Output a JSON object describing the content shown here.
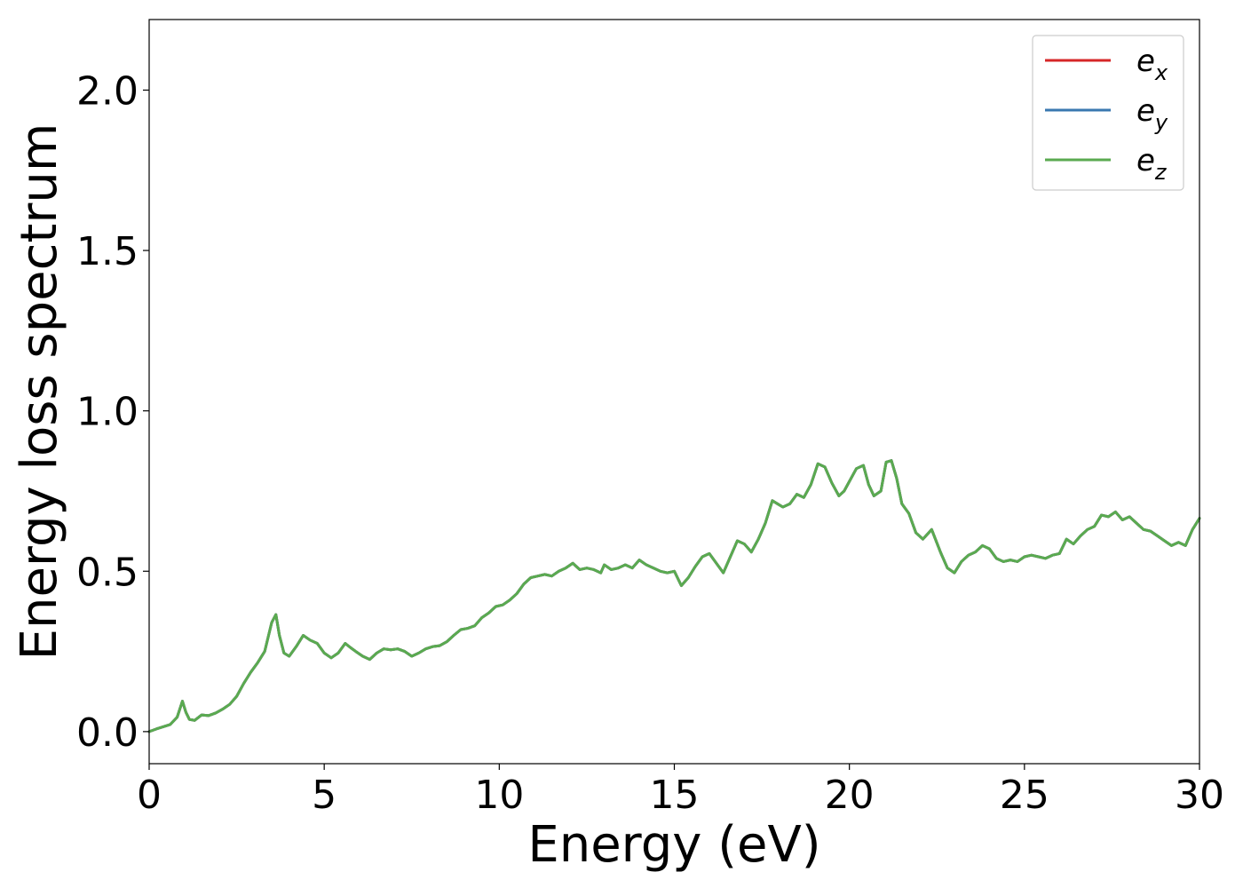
{
  "chart_data": {
    "type": "line",
    "xlabel": "Energy (eV)",
    "ylabel": "Energy loss spectrum",
    "xlim": [
      0,
      30
    ],
    "ylim": [
      -0.1,
      2.22
    ],
    "xticks": [
      0,
      5,
      10,
      15,
      20,
      25,
      30
    ],
    "xtick_labels": [
      "0",
      "5",
      "10",
      "15",
      "20",
      "25",
      "30"
    ],
    "yticks": [
      0.0,
      0.5,
      1.0,
      1.5,
      2.0
    ],
    "ytick_labels": [
      "0.0",
      "0.5",
      "1.0",
      "1.5",
      "2.0"
    ],
    "grid": false,
    "legend_position": "top-right",
    "x": [
      0,
      0.2,
      0.4,
      0.6,
      0.8,
      0.95,
      1.05,
      1.15,
      1.3,
      1.5,
      1.7,
      1.9,
      2.1,
      2.3,
      2.5,
      2.7,
      2.9,
      3.1,
      3.3,
      3.5,
      3.62,
      3.72,
      3.85,
      4.0,
      4.2,
      4.4,
      4.6,
      4.8,
      5.0,
      5.2,
      5.4,
      5.6,
      5.75,
      5.9,
      6.1,
      6.3,
      6.5,
      6.7,
      6.9,
      7.1,
      7.3,
      7.5,
      7.7,
      7.9,
      8.1,
      8.3,
      8.5,
      8.7,
      8.9,
      9.1,
      9.3,
      9.5,
      9.7,
      9.9,
      10.1,
      10.3,
      10.5,
      10.7,
      10.9,
      11.1,
      11.3,
      11.5,
      11.7,
      11.9,
      12.1,
      12.3,
      12.5,
      12.7,
      12.9,
      13.0,
      13.2,
      13.4,
      13.6,
      13.8,
      14.0,
      14.2,
      14.4,
      14.6,
      14.8,
      15.0,
      15.2,
      15.4,
      15.6,
      15.8,
      16.0,
      16.2,
      16.4,
      16.6,
      16.8,
      17.0,
      17.2,
      17.4,
      17.6,
      17.8,
      17.95,
      18.1,
      18.3,
      18.5,
      18.7,
      18.9,
      19.1,
      19.3,
      19.5,
      19.7,
      19.85,
      20.0,
      20.2,
      20.4,
      20.55,
      20.7,
      20.9,
      21.05,
      21.2,
      21.35,
      21.5,
      21.7,
      21.9,
      22.1,
      22.35,
      22.6,
      22.8,
      23.0,
      23.2,
      23.4,
      23.6,
      23.8,
      24.0,
      24.2,
      24.4,
      24.6,
      24.8,
      25.0,
      25.2,
      25.4,
      25.6,
      25.8,
      26.0,
      26.2,
      26.4,
      26.6,
      26.8,
      27.0,
      27.2,
      27.4,
      27.6,
      27.8,
      28.0,
      28.2,
      28.4,
      28.6,
      28.8,
      29.0,
      29.2,
      29.4,
      29.6,
      29.8,
      30.0
    ],
    "series": [
      {
        "name": "e_x",
        "color": "#d62728",
        "values": [
          0.0,
          0.008,
          0.015,
          0.022,
          0.045,
          0.095,
          0.06,
          0.038,
          0.035,
          0.052,
          0.05,
          0.058,
          0.07,
          0.085,
          0.11,
          0.15,
          0.185,
          0.215,
          0.25,
          0.34,
          0.365,
          0.3,
          0.245,
          0.235,
          0.265,
          0.3,
          0.285,
          0.275,
          0.245,
          0.23,
          0.245,
          0.275,
          0.262,
          0.25,
          0.235,
          0.225,
          0.245,
          0.258,
          0.255,
          0.258,
          0.25,
          0.235,
          0.245,
          0.258,
          0.265,
          0.268,
          0.28,
          0.3,
          0.318,
          0.322,
          0.33,
          0.355,
          0.37,
          0.39,
          0.395,
          0.41,
          0.43,
          0.46,
          0.48,
          0.485,
          0.49,
          0.485,
          0.5,
          0.51,
          0.525,
          0.505,
          0.51,
          0.505,
          0.495,
          0.52,
          0.505,
          0.51,
          0.52,
          0.51,
          0.535,
          0.52,
          0.51,
          0.5,
          0.495,
          0.5,
          0.455,
          0.48,
          0.515,
          0.545,
          0.555,
          0.525,
          0.495,
          0.545,
          0.595,
          0.585,
          0.56,
          0.6,
          0.65,
          0.72,
          0.71,
          0.7,
          0.71,
          0.74,
          0.73,
          0.77,
          0.835,
          0.825,
          0.775,
          0.735,
          0.75,
          0.78,
          0.82,
          0.83,
          0.77,
          0.735,
          0.75,
          0.84,
          0.845,
          0.79,
          0.71,
          0.68,
          0.62,
          0.6,
          0.63,
          0.56,
          0.51,
          0.495,
          0.53,
          0.55,
          0.56,
          0.58,
          0.57,
          0.54,
          0.53,
          0.535,
          0.53,
          0.545,
          0.55,
          0.545,
          0.54,
          0.55,
          0.555,
          0.6,
          0.585,
          0.61,
          0.63,
          0.64,
          0.675,
          0.67,
          0.685,
          0.66,
          0.67,
          0.65,
          0.63,
          0.625,
          0.61,
          0.595,
          0.58,
          0.59,
          0.58,
          0.63,
          0.665
        ]
      },
      {
        "name": "e_y",
        "color": "#3a78b0",
        "values": [
          0.0,
          0.008,
          0.015,
          0.022,
          0.045,
          0.095,
          0.06,
          0.038,
          0.035,
          0.052,
          0.05,
          0.058,
          0.07,
          0.085,
          0.11,
          0.15,
          0.185,
          0.215,
          0.25,
          0.34,
          0.365,
          0.3,
          0.245,
          0.235,
          0.265,
          0.3,
          0.285,
          0.275,
          0.245,
          0.23,
          0.245,
          0.275,
          0.262,
          0.25,
          0.235,
          0.225,
          0.245,
          0.258,
          0.255,
          0.258,
          0.25,
          0.235,
          0.245,
          0.258,
          0.265,
          0.268,
          0.28,
          0.3,
          0.318,
          0.322,
          0.33,
          0.355,
          0.37,
          0.39,
          0.395,
          0.41,
          0.43,
          0.46,
          0.48,
          0.485,
          0.49,
          0.485,
          0.5,
          0.51,
          0.525,
          0.505,
          0.51,
          0.505,
          0.495,
          0.52,
          0.505,
          0.51,
          0.52,
          0.51,
          0.535,
          0.52,
          0.51,
          0.5,
          0.495,
          0.5,
          0.455,
          0.48,
          0.515,
          0.545,
          0.555,
          0.525,
          0.495,
          0.545,
          0.595,
          0.585,
          0.56,
          0.6,
          0.65,
          0.72,
          0.71,
          0.7,
          0.71,
          0.74,
          0.73,
          0.77,
          0.835,
          0.825,
          0.775,
          0.735,
          0.75,
          0.78,
          0.82,
          0.83,
          0.77,
          0.735,
          0.75,
          0.84,
          0.845,
          0.79,
          0.71,
          0.68,
          0.62,
          0.6,
          0.63,
          0.56,
          0.51,
          0.495,
          0.53,
          0.55,
          0.56,
          0.58,
          0.57,
          0.54,
          0.53,
          0.535,
          0.53,
          0.545,
          0.55,
          0.545,
          0.54,
          0.55,
          0.555,
          0.6,
          0.585,
          0.61,
          0.63,
          0.64,
          0.675,
          0.67,
          0.685,
          0.66,
          0.67,
          0.65,
          0.63,
          0.625,
          0.61,
          0.595,
          0.58,
          0.59,
          0.58,
          0.63,
          0.665
        ]
      },
      {
        "name": "e_z",
        "color": "#5aaa50",
        "values": [
          0.0,
          0.008,
          0.015,
          0.022,
          0.045,
          0.095,
          0.06,
          0.038,
          0.035,
          0.052,
          0.05,
          0.058,
          0.07,
          0.085,
          0.11,
          0.15,
          0.185,
          0.215,
          0.25,
          0.34,
          0.365,
          0.3,
          0.245,
          0.235,
          0.265,
          0.3,
          0.285,
          0.275,
          0.245,
          0.23,
          0.245,
          0.275,
          0.262,
          0.25,
          0.235,
          0.225,
          0.245,
          0.258,
          0.255,
          0.258,
          0.25,
          0.235,
          0.245,
          0.258,
          0.265,
          0.268,
          0.28,
          0.3,
          0.318,
          0.322,
          0.33,
          0.355,
          0.37,
          0.39,
          0.395,
          0.41,
          0.43,
          0.46,
          0.48,
          0.485,
          0.49,
          0.485,
          0.5,
          0.51,
          0.525,
          0.505,
          0.51,
          0.505,
          0.495,
          0.52,
          0.505,
          0.51,
          0.52,
          0.51,
          0.535,
          0.52,
          0.51,
          0.5,
          0.495,
          0.5,
          0.455,
          0.48,
          0.515,
          0.545,
          0.555,
          0.525,
          0.495,
          0.545,
          0.595,
          0.585,
          0.56,
          0.6,
          0.65,
          0.72,
          0.71,
          0.7,
          0.71,
          0.74,
          0.73,
          0.77,
          0.835,
          0.825,
          0.775,
          0.735,
          0.75,
          0.78,
          0.82,
          0.83,
          0.77,
          0.735,
          0.75,
          0.84,
          0.845,
          0.79,
          0.71,
          0.68,
          0.62,
          0.6,
          0.63,
          0.56,
          0.51,
          0.495,
          0.53,
          0.55,
          0.56,
          0.58,
          0.57,
          0.54,
          0.53,
          0.535,
          0.53,
          0.545,
          0.55,
          0.545,
          0.54,
          0.55,
          0.555,
          0.6,
          0.585,
          0.61,
          0.63,
          0.64,
          0.675,
          0.67,
          0.685,
          0.66,
          0.67,
          0.65,
          0.63,
          0.625,
          0.61,
          0.595,
          0.58,
          0.59,
          0.58,
          0.63,
          0.665
        ]
      }
    ],
    "legend": [
      {
        "base": "e",
        "sub": "x",
        "color": "#d62728"
      },
      {
        "base": "e",
        "sub": "y",
        "color": "#3a78b0"
      },
      {
        "base": "e",
        "sub": "z",
        "color": "#5aaa50"
      }
    ]
  }
}
